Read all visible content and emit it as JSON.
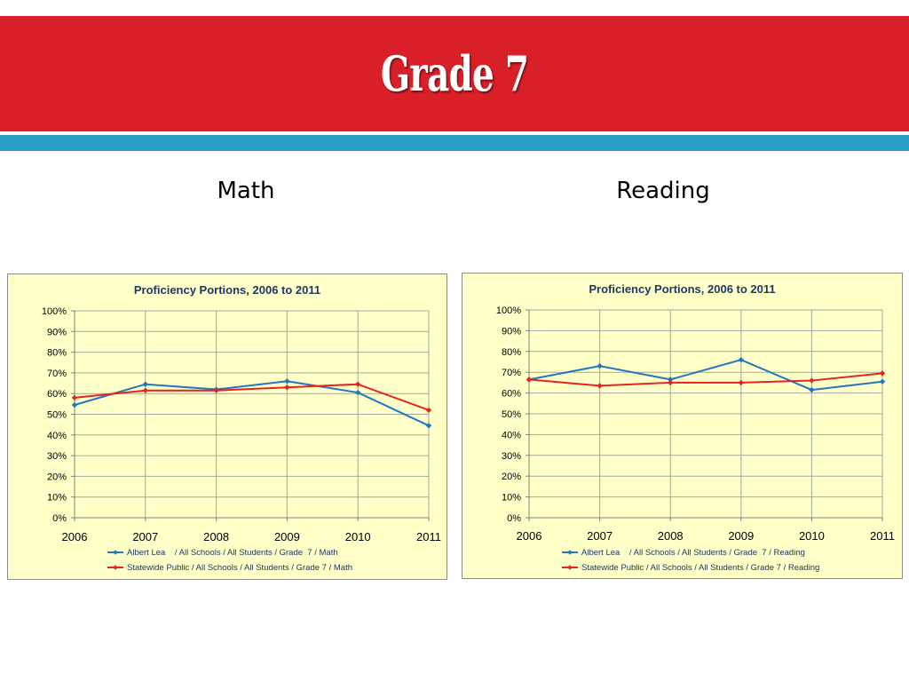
{
  "slide": {
    "title": "Grade 7",
    "colors": {
      "title_band": "#d91f27",
      "stripe": "#2a9fc3",
      "plot_bg": "#ffffc8"
    }
  },
  "subjects": {
    "math": "Math",
    "reading": "Reading"
  },
  "chart_data": [
    {
      "type": "line",
      "title": "Proficiency Portions, 2006 to 2011",
      "categories": [
        "2006",
        "2007",
        "2008",
        "2009",
        "2010",
        "2011"
      ],
      "y_ticks": [
        "0%",
        "10%",
        "20%",
        "30%",
        "40%",
        "50%",
        "60%",
        "70%",
        "80%",
        "90%",
        "100%"
      ],
      "ylim": [
        0,
        100
      ],
      "grid": true,
      "legend_position": "bottom",
      "series": [
        {
          "name": "Albert Lea    / All Schools / All Students / Grade  7 / Math",
          "color": "#1f77c4",
          "values": [
            54.5,
            64.5,
            62,
            66,
            60.5,
            44.5
          ]
        },
        {
          "name": "Statewide Public / All Schools / All Students / Grade 7 / Math",
          "color": "#e8231f",
          "values": [
            58,
            61.5,
            61.5,
            63,
            64.5,
            52
          ]
        }
      ]
    },
    {
      "type": "line",
      "title": "Proficiency Portions, 2006 to 2011",
      "categories": [
        "2006",
        "2007",
        "2008",
        "2009",
        "2010",
        "2011"
      ],
      "y_ticks": [
        "0%",
        "10%",
        "20%",
        "30%",
        "40%",
        "50%",
        "60%",
        "70%",
        "80%",
        "90%",
        "100%"
      ],
      "ylim": [
        0,
        100
      ],
      "grid": true,
      "legend_position": "bottom",
      "series": [
        {
          "name": "Albert Lea    / All Schools / All Students / Grade  7 / Reading",
          "color": "#1f77c4",
          "values": [
            66.5,
            73,
            66.5,
            76,
            61.5,
            65.5
          ]
        },
        {
          "name": "Statewide Public / All Schools / All Students / Grade 7 / Reading",
          "color": "#e8231f",
          "values": [
            66.5,
            63.5,
            65,
            65,
            66,
            69.5
          ]
        }
      ]
    }
  ]
}
